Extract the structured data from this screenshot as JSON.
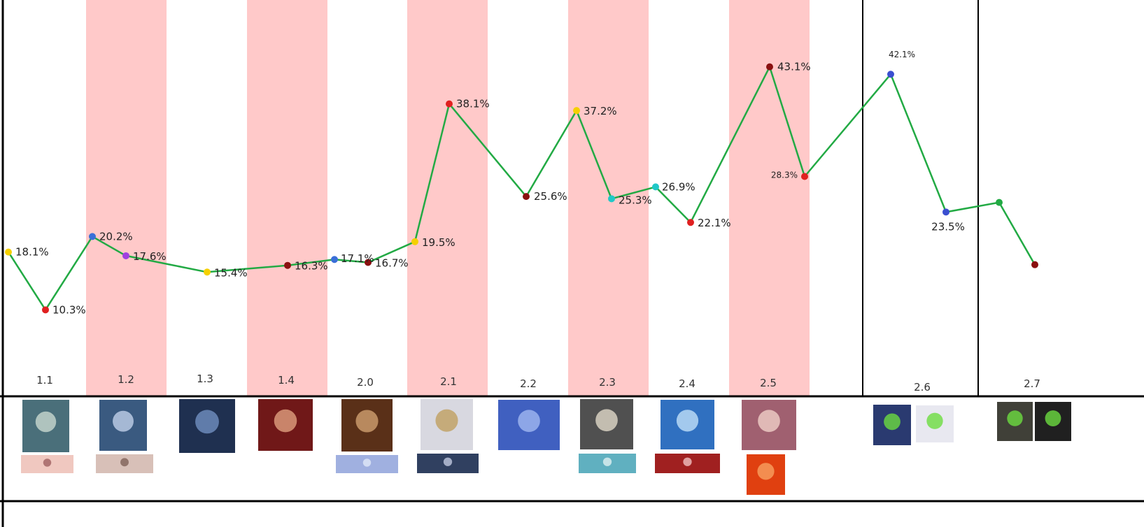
{
  "chart_data": {
    "type": "line",
    "categories": [
      "1.1",
      "1.2",
      "1.3",
      "1.4",
      "2.0",
      "2.1",
      "2.2",
      "2.3",
      "2.4",
      "2.5",
      "2.6",
      "2.7"
    ],
    "series": [
      {
        "points": [
          {
            "x": "1.0 (start)",
            "y": 18.1,
            "label": "18.1%",
            "color": "#f5d000"
          },
          {
            "x": "1.1",
            "y": 10.3,
            "label": "10.3%",
            "color": "#e02020"
          },
          {
            "x": "1.2 first half",
            "y": 20.2,
            "label": "20.2%",
            "color": "#3a6fd8"
          },
          {
            "x": "1.2 second half",
            "y": 17.6,
            "label": "17.6%",
            "color": "#a040e0"
          },
          {
            "x": "1.3",
            "y": 15.4,
            "label": "15.4%",
            "color": "#f5d000"
          },
          {
            "x": "1.4",
            "y": 16.3,
            "label": "16.3%",
            "color": "#8a1010"
          },
          {
            "x": "2.0 first half",
            "y": 17.1,
            "label": "17.1%",
            "color": "#3a6fd8"
          },
          {
            "x": "2.0 second half",
            "y": 16.7,
            "label": "16.7%",
            "color": "#8a1010"
          },
          {
            "x": "2.1 first half",
            "y": 19.5,
            "label": "19.5%",
            "color": "#f5d000"
          },
          {
            "x": "2.1 second half",
            "y": 38.1,
            "label": "38.1%",
            "color": "#e02020"
          },
          {
            "x": "2.2",
            "y": 25.6,
            "label": "25.6%",
            "color": "#8a1010"
          },
          {
            "x": "2.3 first half",
            "y": 37.2,
            "label": "37.2%",
            "color": "#f5d000"
          },
          {
            "x": "2.3 second half",
            "y": 25.3,
            "label": "25.3%",
            "color": "#20c8c8"
          },
          {
            "x": "2.4 first half",
            "y": 26.9,
            "label": "26.9%",
            "color": "#20c8c8"
          },
          {
            "x": "2.4 second half",
            "y": 22.1,
            "label": "22.1%",
            "color": "#e02020"
          },
          {
            "x": "2.5 first half",
            "y": 43.1,
            "label": "43.1%",
            "color": "#8a1010"
          },
          {
            "x": "2.5 second half",
            "y": 28.3,
            "label": "28.3%",
            "color": "#e02020"
          },
          {
            "x": "2.6 first half",
            "y": 42.1,
            "label": "42.1%",
            "color": "#3a4fd0"
          },
          {
            "x": "2.6 second half",
            "y": 23.5,
            "label": "23.5%",
            "color": "#3a4fd0"
          },
          {
            "x": "2.7 first half",
            "y": 24.8,
            "label": "",
            "color": "#22aa44"
          },
          {
            "x": "2.7 second half",
            "y": 16.4,
            "label": "",
            "color": "#8a1010"
          }
        ]
      }
    ],
    "colors": {
      "line": "#22aa44",
      "band": "#ffc9c9",
      "axis": "#000000"
    },
    "grid": false,
    "legend": "none",
    "banner_images": "character portraits shown under each version"
  }
}
